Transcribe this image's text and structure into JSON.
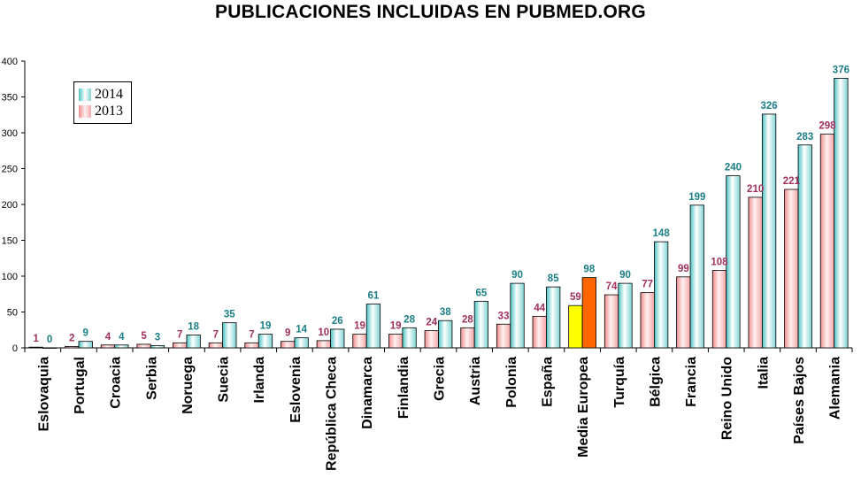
{
  "chart_data": {
    "type": "bar",
    "title": "PUBLICACIONES INCLUIDAS EN PUBMED.ORG",
    "xlabel": "",
    "ylabel": "",
    "ylim": [
      0,
      400
    ],
    "yticks": [
      "0",
      "50",
      "100",
      "150",
      "200",
      "250",
      "300",
      "350",
      "400"
    ],
    "grid": false,
    "legend_position": "top-left",
    "categories": [
      "Eslovaquia",
      "Portugal",
      "Croacia",
      "Serbia",
      "Noruega",
      "Suecia",
      "Irlanda",
      "Eslovenia",
      "República Checa",
      "Dinamarca",
      "Finlandia",
      "Grecia",
      "Austria",
      "Polonia",
      "España",
      "Media Europea",
      "Turquía",
      "Bélgica",
      "Francia",
      "Reino Unido",
      "Italia",
      "Países Bajos",
      "Alemania"
    ],
    "series": [
      {
        "name": "2013",
        "color": "#f4a6a6",
        "label_color": "#a0305e",
        "values": [
          1,
          2,
          4,
          5,
          7,
          7,
          7,
          9,
          10,
          19,
          19,
          24,
          28,
          33,
          44,
          59,
          74,
          77,
          99,
          108,
          210,
          221,
          298
        ]
      },
      {
        "name": "2014",
        "color": "#8fdcdc",
        "label_color": "#1a7f86",
        "values": [
          0,
          9,
          4,
          3,
          18,
          35,
          19,
          14,
          26,
          61,
          28,
          38,
          65,
          90,
          85,
          98,
          90,
          148,
          199,
          240,
          326,
          283,
          376
        ]
      }
    ],
    "highlight": {
      "category": "Media Europea",
      "colors": {
        "2013": "#ffff00",
        "2014": "#ff6600"
      }
    }
  }
}
